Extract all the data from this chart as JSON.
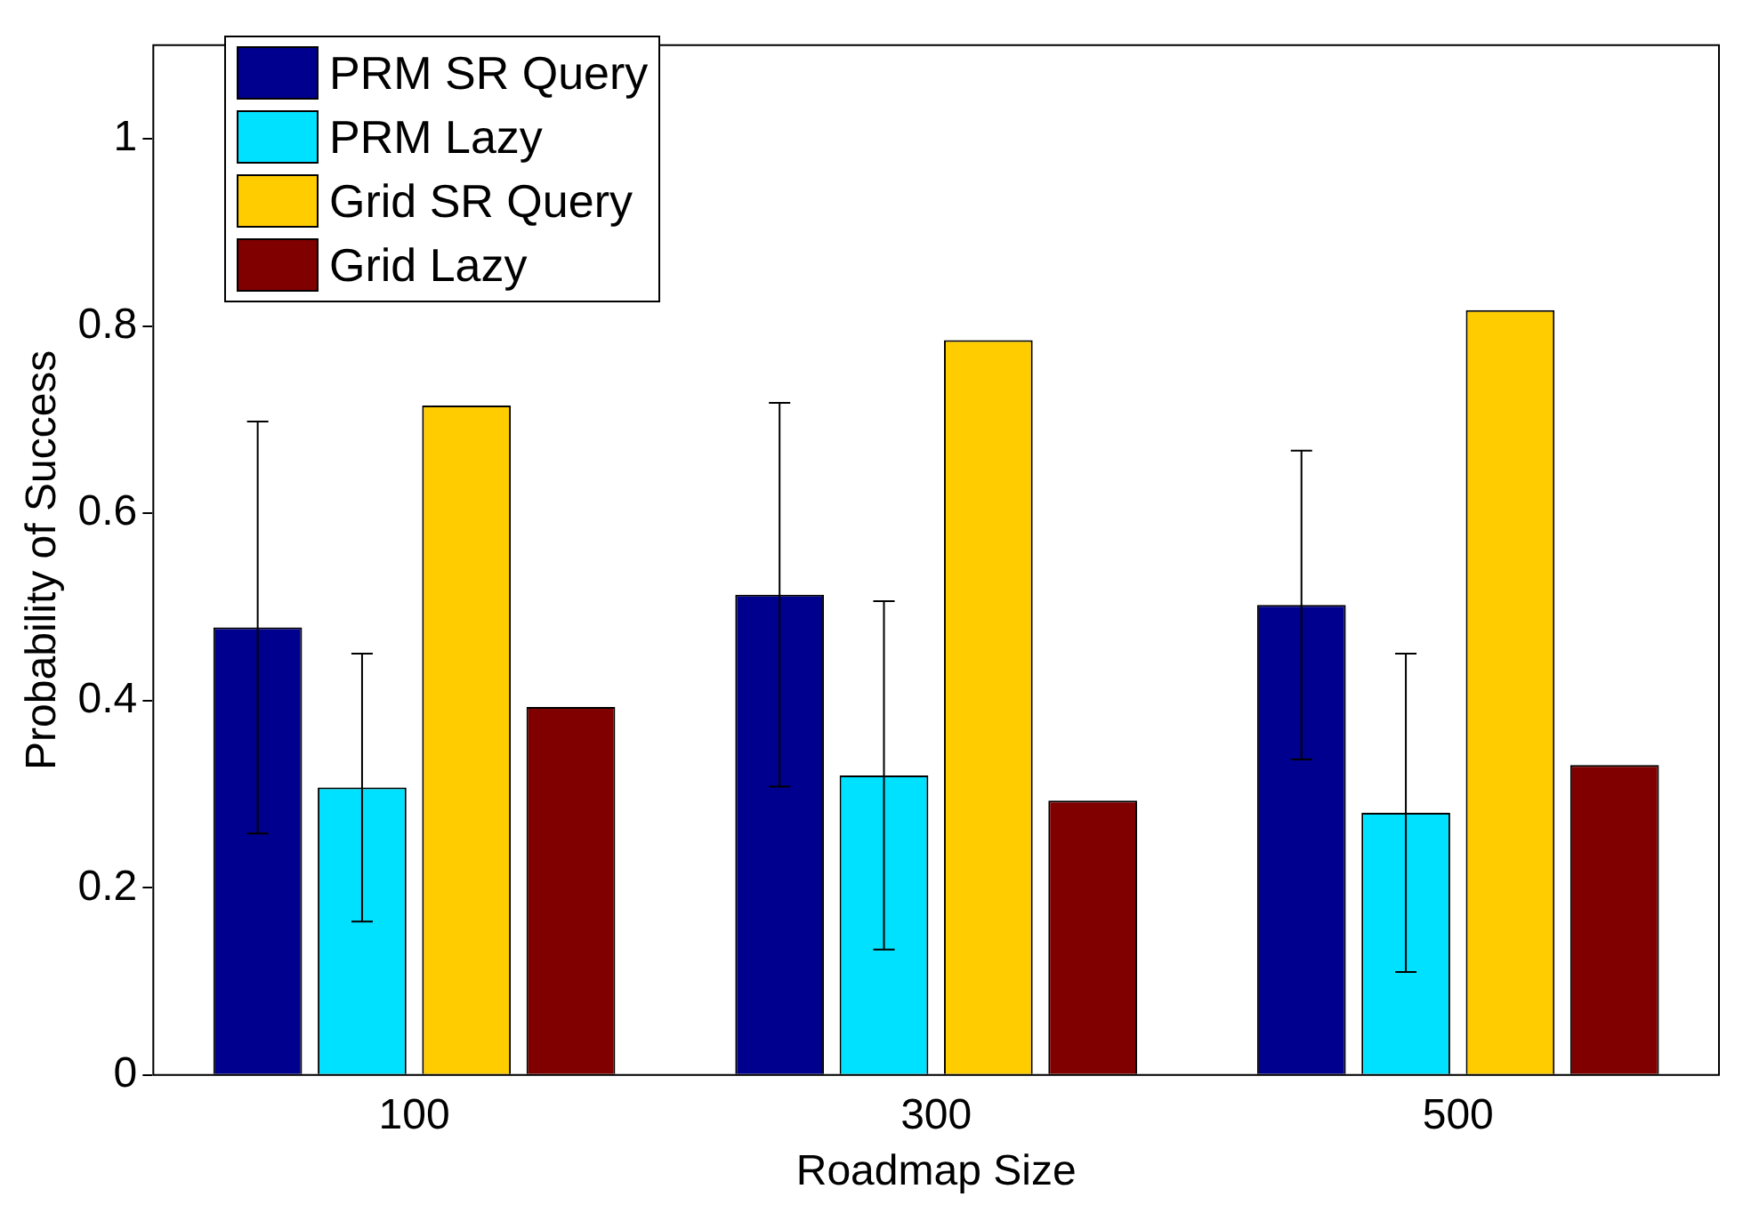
{
  "chart_data": {
    "type": "bar",
    "xlabel": "Roadmap Size",
    "ylabel": "Probability of Success",
    "categories": [
      "100",
      "300",
      "500"
    ],
    "series": [
      {
        "name": "PRM SR Query",
        "color": "#00008f",
        "values": [
          0.478,
          0.513,
          0.502
        ],
        "errors": [
          0.22,
          0.205,
          0.165
        ]
      },
      {
        "name": "PRM Lazy",
        "color": "#00e0ff",
        "values": [
          0.307,
          0.32,
          0.28
        ],
        "errors": [
          0.143,
          0.186,
          0.17
        ]
      },
      {
        "name": "Grid SR Query",
        "color": "#ffcc00",
        "values": [
          0.715,
          0.785,
          0.817
        ]
      },
      {
        "name": "Grid Lazy",
        "color": "#800000",
        "values": [
          0.393,
          0.293,
          0.331
        ]
      }
    ],
    "ylim": [
      0,
      1.1
    ],
    "yticks": [
      0,
      0.2,
      0.4,
      0.6,
      0.8,
      1
    ],
    "grid": false,
    "legend": "top left"
  }
}
